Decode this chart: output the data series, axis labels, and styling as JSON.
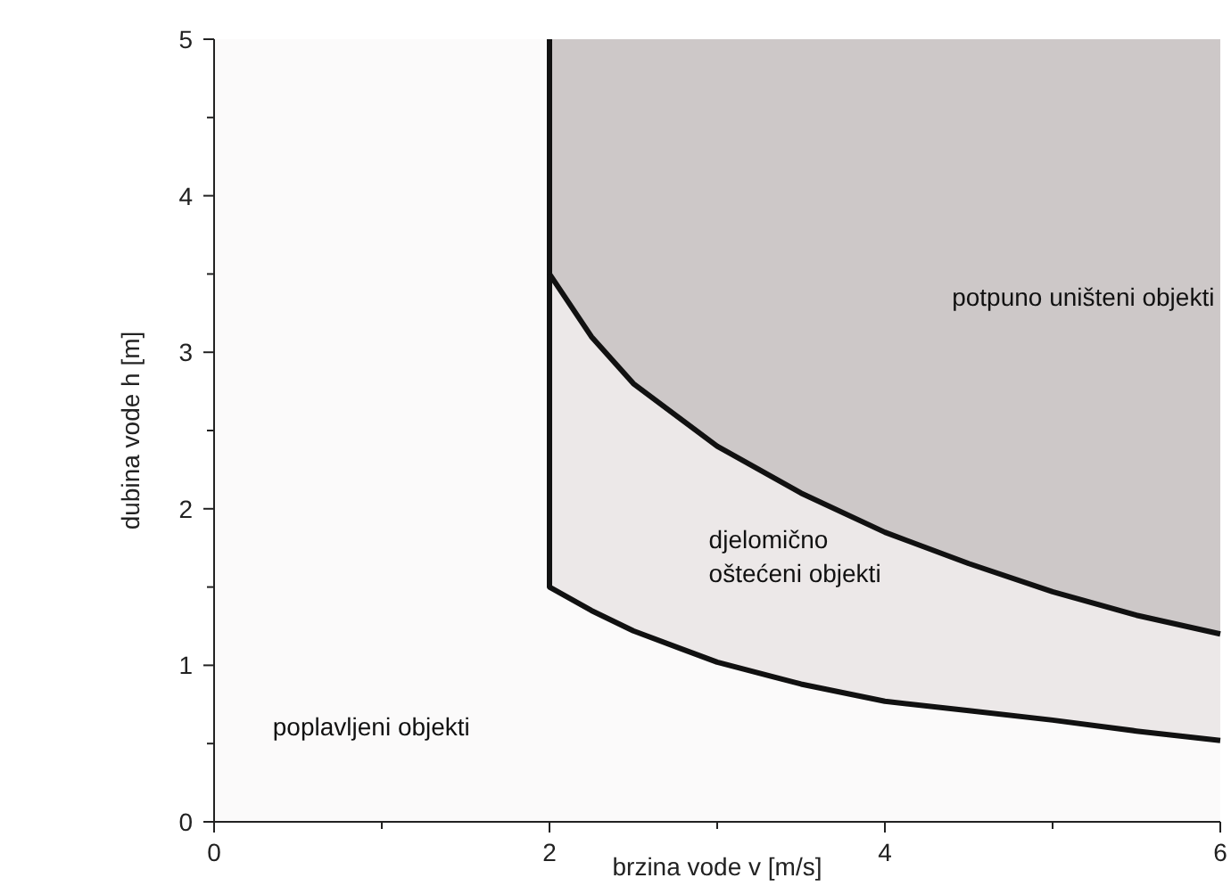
{
  "chart_data": {
    "type": "line",
    "xlabel": "brzina vode v [m/s]",
    "ylabel": "dubina vode h [m]",
    "xlim": [
      0,
      6
    ],
    "ylim": [
      0,
      5
    ],
    "xticks": [
      0,
      {
        "value": 1,
        "label": null
      },
      2,
      {
        "value": 3,
        "label": null
      },
      4,
      {
        "value": 5,
        "label": null
      },
      6
    ],
    "yticks": [
      0,
      {
        "value": 0.5,
        "label": null
      },
      1,
      {
        "value": 1.5,
        "label": null
      },
      2,
      {
        "value": 2.5,
        "label": null
      },
      3,
      {
        "value": 3.5,
        "label": null
      },
      4,
      {
        "value": 4.5,
        "label": null
      },
      5
    ],
    "grid": false,
    "marker": "none",
    "line_style": "solid",
    "series": [
      {
        "color": "#111111",
        "x": [
          2,
          2,
          2.25,
          2.5,
          3,
          3.5,
          4,
          4.5,
          5,
          5.5,
          6
        ],
        "values": [
          5,
          3.5,
          3.1,
          2.8,
          2.4,
          2.1,
          1.85,
          1.65,
          1.47,
          1.32,
          1.2
        ]
      },
      {
        "color": "#111111",
        "x": [
          2,
          2,
          2.25,
          2.5,
          3,
          3.5,
          4,
          4.5,
          5,
          5.5,
          6
        ],
        "values": [
          3.5,
          1.5,
          1.35,
          1.22,
          1.02,
          0.88,
          0.77,
          0.71,
          0.65,
          0.58,
          0.52
        ]
      }
    ],
    "annotations": [
      "potpuno uništeni objekti",
      "djelomično\noštećeni objekti",
      "poplavljeni objekti"
    ]
  }
}
